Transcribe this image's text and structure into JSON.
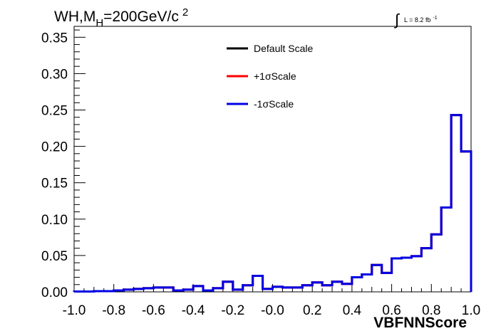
{
  "chart_data": {
    "type": "line",
    "title_parts": {
      "a": "WH,M",
      "sub": "H",
      "b": "=200GeV/c",
      "sup": "2"
    },
    "lumi": {
      "integral": "∫",
      "text": "L = 8.2 fb",
      "sup": "-1"
    },
    "xlabel": "VBFNNScore",
    "ylabel": "",
    "xlim": [
      -1.0,
      1.0
    ],
    "ylim": [
      0.0,
      0.365
    ],
    "x_ticks": [
      "-1.0",
      "-0.8",
      "-0.6",
      "-0.4",
      "-0.2",
      "-0.0",
      "0.2",
      "0.4",
      "0.6",
      "0.8",
      "1.0"
    ],
    "y_ticks": [
      "0.00",
      "0.05",
      "0.10",
      "0.15",
      "0.20",
      "0.25",
      "0.30",
      "0.35"
    ],
    "bin_edges": [
      -1.0,
      -0.95,
      -0.9,
      -0.85,
      -0.8,
      -0.75,
      -0.7,
      -0.65,
      -0.6,
      -0.55,
      -0.5,
      -0.45,
      -0.4,
      -0.35,
      -0.3,
      -0.25,
      -0.2,
      -0.15,
      -0.1,
      -0.05,
      0.0,
      0.05,
      0.1,
      0.15,
      0.2,
      0.25,
      0.3,
      0.35,
      0.4,
      0.45,
      0.5,
      0.55,
      0.6,
      0.65,
      0.7,
      0.75,
      0.8,
      0.85,
      0.9,
      0.95,
      1.0
    ],
    "series": [
      {
        "name": "Default Scale",
        "color": "#000000",
        "values": [
          0.0005,
          0.0005,
          0.001,
          0.001,
          0.002,
          0.003,
          0.004,
          0.005,
          0.006,
          0.006,
          0.002,
          0.003,
          0.008,
          0.002,
          0.005,
          0.014,
          0.003,
          0.009,
          0.022,
          0.004,
          0.007,
          0.006,
          0.006,
          0.009,
          0.013,
          0.009,
          0.014,
          0.011,
          0.02,
          0.024,
          0.037,
          0.026,
          0.046,
          0.047,
          0.049,
          0.06,
          0.079,
          0.116,
          0.243,
          0.193
        ]
      },
      {
        "name": "+1σScale",
        "color": "#ff0000",
        "values": [
          0.0005,
          0.0005,
          0.001,
          0.001,
          0.002,
          0.003,
          0.004,
          0.005,
          0.006,
          0.006,
          0.002,
          0.003,
          0.008,
          0.002,
          0.005,
          0.014,
          0.003,
          0.009,
          0.022,
          0.004,
          0.007,
          0.006,
          0.006,
          0.009,
          0.013,
          0.009,
          0.014,
          0.011,
          0.02,
          0.024,
          0.037,
          0.026,
          0.046,
          0.047,
          0.049,
          0.06,
          0.079,
          0.116,
          0.243,
          0.193
        ]
      },
      {
        "name": "-1σScale",
        "color": "#0000e6",
        "values": [
          0.0005,
          0.0005,
          0.001,
          0.001,
          0.002,
          0.003,
          0.004,
          0.005,
          0.006,
          0.006,
          0.002,
          0.003,
          0.008,
          0.002,
          0.005,
          0.014,
          0.003,
          0.009,
          0.022,
          0.004,
          0.007,
          0.006,
          0.006,
          0.009,
          0.013,
          0.009,
          0.014,
          0.011,
          0.02,
          0.024,
          0.037,
          0.026,
          0.046,
          0.047,
          0.049,
          0.06,
          0.079,
          0.116,
          0.243,
          0.193
        ]
      }
    ],
    "legend_position": "top-center",
    "grid": false
  }
}
